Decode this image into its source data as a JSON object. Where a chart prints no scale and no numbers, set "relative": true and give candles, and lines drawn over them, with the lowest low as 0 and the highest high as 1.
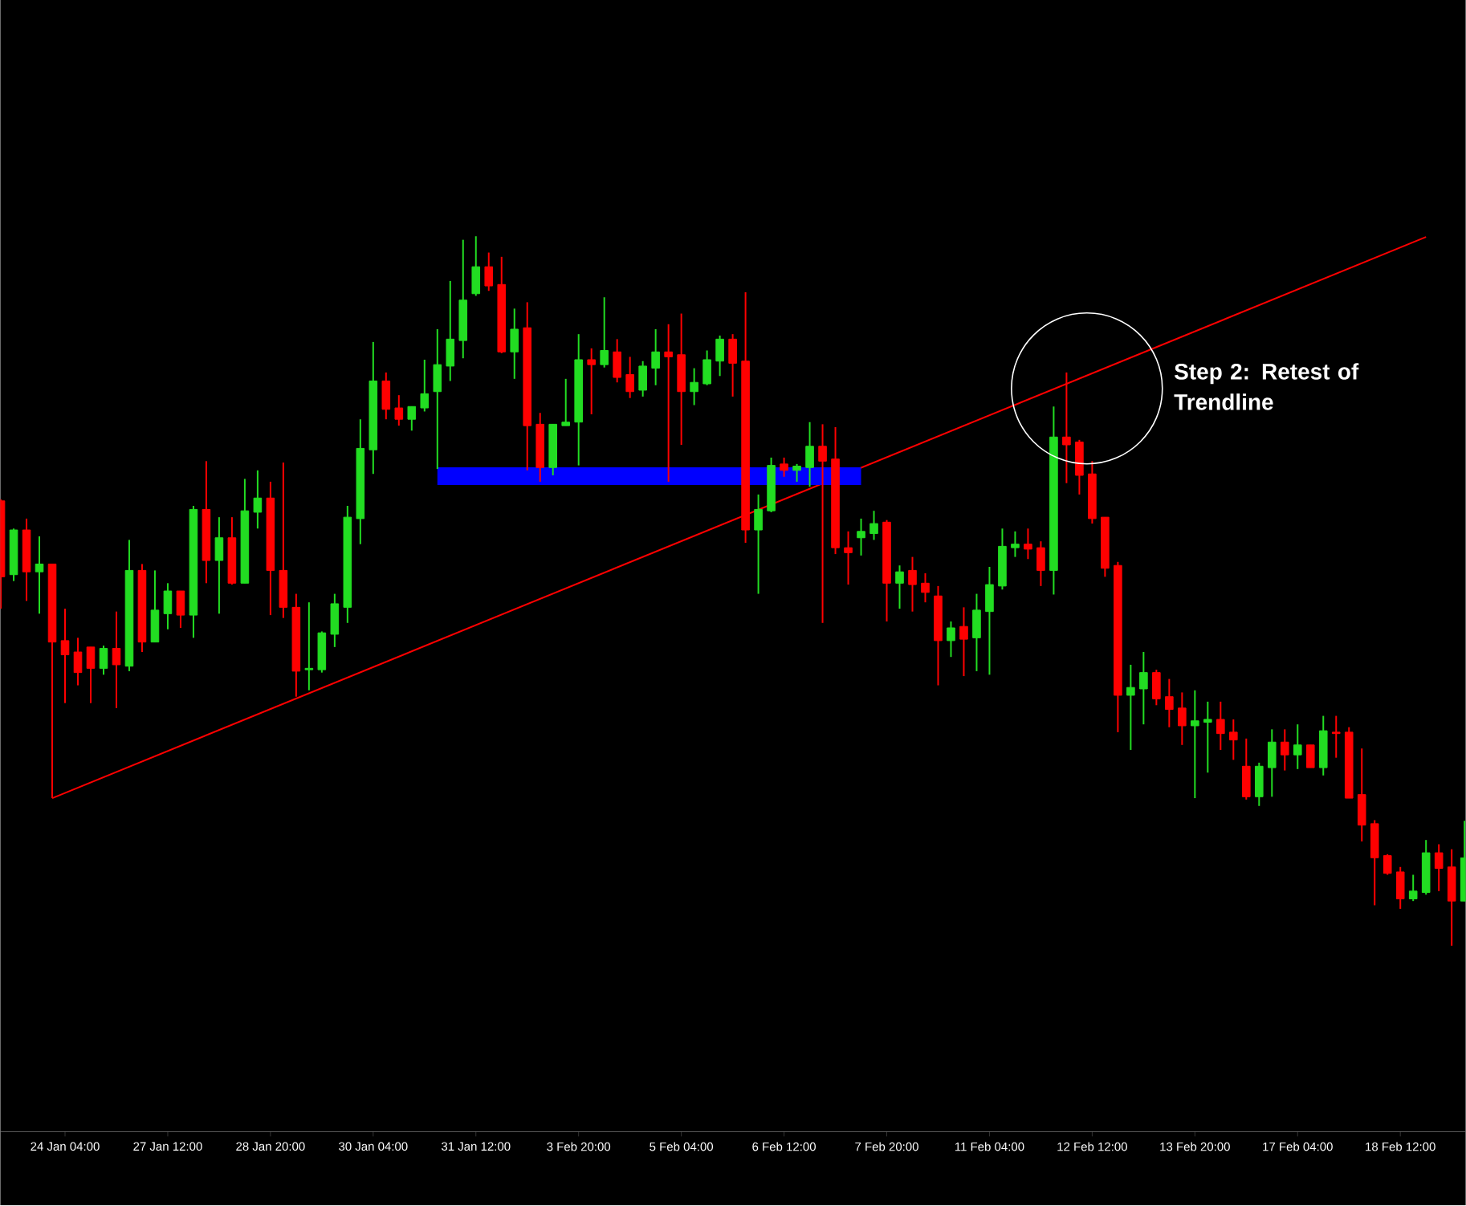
{
  "chart_data": {
    "type": "candlestick",
    "relative": true,
    "categories": [
      null,
      null,
      null,
      null,
      null,
      "24 Jan 04:00",
      null,
      null,
      null,
      null,
      null,
      null,
      null,
      "27 Jan 12:00",
      null,
      null,
      null,
      null,
      null,
      null,
      null,
      "28 Jan 20:00",
      null,
      null,
      null,
      null,
      null,
      null,
      null,
      "30 Jan 04:00",
      null,
      null,
      null,
      null,
      null,
      null,
      null,
      "31 Jan 12:00",
      null,
      null,
      null,
      null,
      null,
      null,
      null,
      "3 Feb 20:00",
      null,
      null,
      null,
      null,
      null,
      null,
      null,
      "5 Feb 04:00",
      null,
      null,
      null,
      null,
      null,
      null,
      null,
      "6 Feb 12:00",
      null,
      null,
      null,
      null,
      null,
      null,
      null,
      "7 Feb 20:00",
      null,
      null,
      null,
      null,
      null,
      null,
      null,
      "11 Feb 04:00",
      null,
      null,
      null,
      null,
      null,
      null,
      null,
      "12 Feb 12:00",
      null,
      null,
      null,
      null,
      null,
      null,
      null,
      "13 Feb 20:00",
      null,
      null,
      null,
      null,
      null,
      null,
      null,
      "17 Feb 04:00",
      null,
      null,
      null,
      null,
      null,
      null,
      null,
      "18 Feb 12:00",
      null,
      null,
      null,
      null,
      null
    ],
    "ohlc": [
      [
        0.627,
        0.629,
        0.475,
        0.52
      ],
      [
        0.523,
        0.588,
        0.514,
        0.586
      ],
      [
        0.586,
        0.602,
        0.486,
        0.527
      ],
      [
        0.527,
        0.577,
        0.468,
        0.538
      ],
      [
        0.538,
        0.538,
        0.208,
        0.428
      ],
      [
        0.43,
        0.475,
        0.342,
        0.41
      ],
      [
        0.414,
        0.434,
        0.367,
        0.385
      ],
      [
        0.421,
        0.421,
        0.342,
        0.391
      ],
      [
        0.391,
        0.423,
        0.382,
        0.419
      ],
      [
        0.419,
        0.471,
        0.335,
        0.396
      ],
      [
        0.394,
        0.572,
        0.387,
        0.529
      ],
      [
        0.529,
        0.538,
        0.414,
        0.428
      ],
      [
        0.428,
        0.529,
        0.428,
        0.473
      ],
      [
        0.468,
        0.511,
        0.446,
        0.5
      ],
      [
        0.5,
        0.5,
        0.448,
        0.466
      ],
      [
        0.466,
        0.62,
        0.434,
        0.615
      ],
      [
        0.615,
        0.683,
        0.511,
        0.543
      ],
      [
        0.543,
        0.604,
        0.468,
        0.575
      ],
      [
        0.575,
        0.604,
        0.509,
        0.511
      ],
      [
        0.511,
        0.658,
        0.511,
        0.613
      ],
      [
        0.611,
        0.67,
        0.588,
        0.631
      ],
      [
        0.631,
        0.654,
        0.466,
        0.529
      ],
      [
        0.529,
        0.681,
        0.462,
        0.477
      ],
      [
        0.477,
        0.496,
        0.351,
        0.387
      ],
      [
        0.389,
        0.484,
        0.36,
        0.391
      ],
      [
        0.389,
        0.443,
        0.385,
        0.441
      ],
      [
        0.439,
        0.496,
        0.421,
        0.482
      ],
      [
        0.477,
        0.62,
        0.455,
        0.604
      ],
      [
        0.602,
        0.742,
        0.566,
        0.701
      ],
      [
        0.699,
        0.851,
        0.665,
        0.796
      ],
      [
        0.796,
        0.808,
        0.742,
        0.756
      ],
      [
        0.758,
        0.776,
        0.733,
        0.742
      ],
      [
        0.742,
        0.76,
        0.726,
        0.76
      ],
      [
        0.758,
        0.826,
        0.753,
        0.778
      ],
      [
        0.781,
        0.869,
        0.672,
        0.819
      ],
      [
        0.817,
        0.937,
        0.796,
        0.855
      ],
      [
        0.853,
        0.995,
        0.828,
        0.91
      ],
      [
        0.919,
        1.0,
        0.916,
        0.957
      ],
      [
        0.957,
        0.977,
        0.923,
        0.93
      ],
      [
        0.932,
        0.971,
        0.835,
        0.837
      ],
      [
        0.837,
        0.898,
        0.799,
        0.869
      ],
      [
        0.871,
        0.907,
        0.67,
        0.733
      ],
      [
        0.735,
        0.751,
        0.654,
        0.674
      ],
      [
        0.674,
        0.735,
        0.663,
        0.735
      ],
      [
        0.733,
        0.799,
        0.733,
        0.738
      ],
      [
        0.738,
        0.862,
        0.677,
        0.826
      ],
      [
        0.826,
        0.842,
        0.749,
        0.819
      ],
      [
        0.819,
        0.914,
        0.815,
        0.839
      ],
      [
        0.837,
        0.855,
        0.794,
        0.801
      ],
      [
        0.805,
        0.83,
        0.772,
        0.781
      ],
      [
        0.783,
        0.824,
        0.774,
        0.817
      ],
      [
        0.814,
        0.869,
        0.79,
        0.837
      ],
      [
        0.837,
        0.876,
        0.654,
        0.83
      ],
      [
        0.833,
        0.891,
        0.706,
        0.781
      ],
      [
        0.781,
        0.814,
        0.762,
        0.794
      ],
      [
        0.792,
        0.839,
        0.79,
        0.826
      ],
      [
        0.824,
        0.86,
        0.803,
        0.855
      ],
      [
        0.855,
        0.862,
        0.774,
        0.821
      ],
      [
        0.824,
        0.921,
        0.568,
        0.586
      ],
      [
        0.586,
        0.636,
        0.496,
        0.615
      ],
      [
        0.613,
        0.688,
        0.611,
        0.677
      ],
      [
        0.679,
        0.688,
        0.661,
        0.67
      ],
      [
        0.67,
        0.679,
        0.654,
        0.676
      ],
      [
        0.674,
        0.738,
        0.647,
        0.704
      ],
      [
        0.704,
        0.735,
        0.455,
        0.683
      ],
      [
        0.686,
        0.731,
        0.552,
        0.561
      ],
      [
        0.561,
        0.584,
        0.509,
        0.554
      ],
      [
        0.575,
        0.602,
        0.55,
        0.584
      ],
      [
        0.581,
        0.613,
        0.572,
        0.595
      ],
      [
        0.597,
        0.6,
        0.457,
        0.511
      ],
      [
        0.511,
        0.536,
        0.475,
        0.527
      ],
      [
        0.529,
        0.548,
        0.471,
        0.509
      ],
      [
        0.511,
        0.525,
        0.484,
        0.498
      ],
      [
        0.493,
        0.507,
        0.367,
        0.43
      ],
      [
        0.43,
        0.457,
        0.407,
        0.448
      ],
      [
        0.45,
        0.477,
        0.38,
        0.432
      ],
      [
        0.434,
        0.496,
        0.387,
        0.473
      ],
      [
        0.471,
        0.534,
        0.382,
        0.509
      ],
      [
        0.507,
        0.588,
        0.502,
        0.563
      ],
      [
        0.561,
        0.584,
        0.548,
        0.566
      ],
      [
        0.566,
        0.588,
        0.545,
        0.559
      ],
      [
        0.561,
        0.57,
        0.507,
        0.529
      ],
      [
        0.529,
        0.76,
        0.495,
        0.717
      ],
      [
        0.717,
        0.808,
        0.652,
        0.706
      ],
      [
        0.71,
        0.713,
        0.636,
        0.663
      ],
      [
        0.665,
        0.683,
        0.595,
        0.602
      ],
      [
        0.604,
        0.604,
        0.52,
        0.532
      ],
      [
        0.536,
        0.541,
        0.301,
        0.353
      ],
      [
        0.353,
        0.396,
        0.276,
        0.364
      ],
      [
        0.362,
        0.414,
        0.312,
        0.385
      ],
      [
        0.385,
        0.389,
        0.339,
        0.348
      ],
      [
        0.351,
        0.376,
        0.308,
        0.333
      ],
      [
        0.335,
        0.357,
        0.283,
        0.31
      ],
      [
        0.31,
        0.36,
        0.208,
        0.317
      ],
      [
        0.315,
        0.344,
        0.244,
        0.319
      ],
      [
        0.319,
        0.344,
        0.276,
        0.299
      ],
      [
        0.301,
        0.319,
        0.262,
        0.29
      ],
      [
        0.253,
        0.292,
        0.206,
        0.21
      ],
      [
        0.21,
        0.258,
        0.197,
        0.253
      ],
      [
        0.251,
        0.305,
        0.21,
        0.287
      ],
      [
        0.287,
        0.305,
        0.247,
        0.269
      ],
      [
        0.269,
        0.312,
        0.249,
        0.283
      ],
      [
        0.283,
        0.283,
        0.251,
        0.251
      ],
      [
        0.251,
        0.324,
        0.24,
        0.303
      ],
      [
        0.301,
        0.324,
        0.265,
        0.299
      ],
      [
        0.301,
        0.308,
        0.208,
        0.208
      ],
      [
        0.213,
        0.278,
        0.147,
        0.17
      ],
      [
        0.172,
        0.177,
        0.057,
        0.124
      ],
      [
        0.127,
        0.129,
        0.1,
        0.102
      ],
      [
        0.104,
        0.111,
        0.052,
        0.066
      ],
      [
        0.066,
        0.1,
        0.063,
        0.077
      ],
      [
        0.075,
        0.149,
        0.072,
        0.131
      ],
      [
        0.131,
        0.143,
        0.077,
        0.109
      ],
      [
        0.111,
        0.136,
        0.0,
        0.063
      ],
      [
        0.063,
        0.176,
        0.063,
        0.124
      ]
    ],
    "colors": [
      "#ff0000",
      "#22dd22",
      "#ff0000",
      "#22dd22",
      "#ff0000",
      "#ff0000",
      "#ff0000",
      "#ff0000",
      "#22dd22",
      "#ff0000",
      "#22dd22",
      "#ff0000",
      "#22dd22",
      "#22dd22",
      "#ff0000",
      "#22dd22",
      "#ff0000",
      "#22dd22",
      "#ff0000",
      "#22dd22",
      "#22dd22",
      "#ff0000",
      "#ff0000",
      "#ff0000",
      "#22dd22",
      "#22dd22",
      "#22dd22",
      "#22dd22",
      "#22dd22",
      "#22dd22",
      "#ff0000",
      "#ff0000",
      "#22dd22",
      "#22dd22",
      "#22dd22",
      "#22dd22",
      "#22dd22",
      "#22dd22",
      "#ff0000",
      "#ff0000",
      "#22dd22",
      "#ff0000",
      "#ff0000",
      "#22dd22",
      "#22dd22",
      "#22dd22",
      "#ff0000",
      "#22dd22",
      "#ff0000",
      "#ff0000",
      "#22dd22",
      "#22dd22",
      "#ff0000",
      "#ff0000",
      "#22dd22",
      "#22dd22",
      "#22dd22",
      "#ff0000",
      "#ff0000",
      "#22dd22",
      "#22dd22",
      "#ff0000",
      "#22dd22",
      "#22dd22",
      "#ff0000",
      "#ff0000",
      "#ff0000",
      "#22dd22",
      "#22dd22",
      "#ff0000",
      "#22dd22",
      "#ff0000",
      "#ff0000",
      "#ff0000",
      "#22dd22",
      "#ff0000",
      "#22dd22",
      "#22dd22",
      "#22dd22",
      "#22dd22",
      "#ff0000",
      "#ff0000",
      "#22dd22",
      "#ff0000",
      "#ff0000",
      "#ff0000",
      "#ff0000",
      "#ff0000",
      "#22dd22",
      "#22dd22",
      "#ff0000",
      "#ff0000",
      "#ff0000",
      "#22dd22",
      "#22dd22",
      "#ff0000",
      "#ff0000",
      "#ff0000",
      "#22dd22",
      "#22dd22",
      "#ff0000",
      "#22dd22",
      "#ff0000",
      "#22dd22",
      "#ff0000",
      "#ff0000",
      "#ff0000",
      "#ff0000",
      "#ff0000",
      "#ff0000",
      "#22dd22",
      "#22dd22",
      "#ff0000",
      "#ff0000",
      "#22dd22"
    ],
    "series": [
      {
        "type": "line",
        "color": "#ff0000",
        "values": [
          null,
          null,
          null,
          null,
          0.208,
          null,
          null,
          null,
          null,
          null,
          null,
          null,
          null,
          null,
          null,
          null,
          null,
          null,
          null,
          null,
          null,
          null,
          null,
          null,
          null,
          null,
          null,
          null,
          null,
          null,
          null,
          null,
          null,
          null,
          null,
          null,
          null,
          null,
          null,
          null,
          null,
          null,
          null,
          null,
          null,
          null,
          null,
          null,
          null,
          null,
          null,
          null,
          null,
          null,
          null,
          null,
          null,
          null,
          null,
          null,
          null,
          null,
          null,
          null,
          null,
          null,
          null,
          null,
          null,
          null,
          null,
          null,
          null,
          null,
          null,
          null,
          null,
          null,
          null,
          null,
          null,
          null,
          null,
          null,
          null,
          null,
          null,
          null,
          null,
          null,
          null,
          null,
          null,
          null,
          null,
          null,
          null,
          null,
          null,
          null,
          null,
          null,
          null,
          null,
          null,
          null,
          null,
          null,
          null,
          null,
          null,
          0.999,
          null,
          null,
          null
        ]
      },
      {
        "type": "line",
        "color": "#0000ff",
        "values": [
          null,
          null,
          null,
          null,
          null,
          null,
          null,
          null,
          null,
          null,
          null,
          null,
          null,
          null,
          null,
          null,
          null,
          null,
          null,
          null,
          null,
          null,
          null,
          null,
          null,
          null,
          null,
          null,
          null,
          null,
          null,
          null,
          null,
          null,
          0.662,
          null,
          null,
          null,
          null,
          null,
          null,
          null,
          null,
          null,
          null,
          null,
          null,
          null,
          null,
          null,
          null,
          null,
          null,
          null,
          null,
          null,
          null,
          null,
          null,
          null,
          null,
          null,
          null,
          null,
          null,
          null,
          null,
          0.662,
          null,
          null,
          null,
          null,
          null,
          null,
          null,
          null,
          null,
          null,
          null,
          null,
          null,
          null,
          null,
          null,
          null,
          null,
          null,
          null,
          null,
          null,
          null,
          null,
          null,
          null,
          null,
          null,
          null,
          null,
          null,
          null,
          null,
          null,
          null,
          null,
          null,
          null,
          null,
          null,
          null,
          null,
          null,
          null,
          null,
          null,
          null
        ]
      }
    ],
    "annotations": [
      "Step 2: Retest of Trendline"
    ]
  }
}
